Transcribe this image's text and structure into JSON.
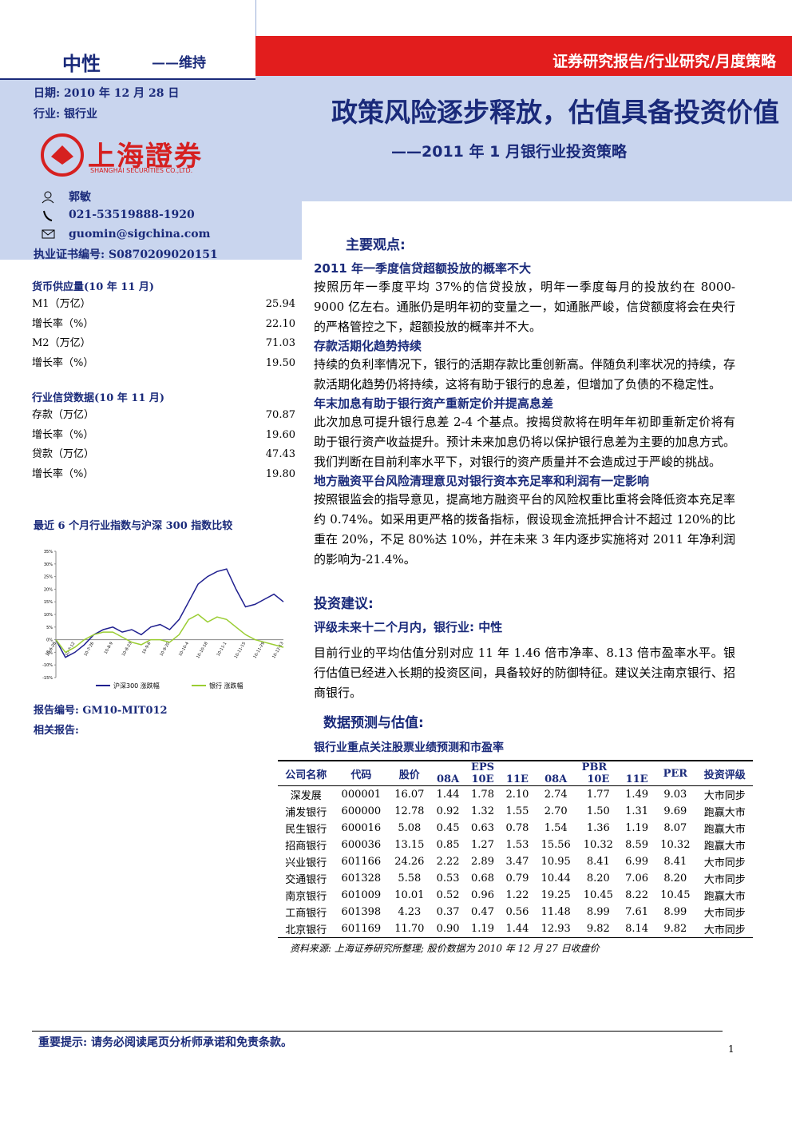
{
  "header": {
    "rating": "中性",
    "rating_action": "——维持",
    "report_type": "证券研究报告/行业研究/月度策略",
    "date": "日期: 2010 年 12 月 28 日",
    "industry": "行业: 银行业",
    "title": "政策风险逐步释放，估值具备投资价值",
    "subtitle": "——2011 年 1 月银行业投资策略",
    "logo_cn": "上海證券",
    "logo_en": "SHANGHAI SECURITIES CO.,LTD."
  },
  "analyst": {
    "name": "郭敏",
    "phone": "021-53519888-1920",
    "email": "guomin@sigchina.com",
    "license": "执业证书编号: S0870209020151"
  },
  "sidebar": {
    "tables": [
      {
        "title": "货币供应量(10 年 11 月)",
        "rows": [
          [
            "M1（万亿）",
            "25.94"
          ],
          [
            "增长率（%）",
            "22.10"
          ],
          [
            "M2（万亿）",
            "71.03"
          ],
          [
            "增长率（%）",
            "19.50"
          ]
        ]
      },
      {
        "title": "行业信贷数据(10 年 11 月)",
        "rows": [
          [
            "存款（万亿）",
            "70.87"
          ],
          [
            "增长率（%）",
            "19.60"
          ],
          [
            "贷款（万亿）",
            "47.43"
          ],
          [
            "增长率（%）",
            "19.80"
          ]
        ]
      }
    ],
    "chart_title": "最近 6 个月行业指数与沪深 300 指数比较",
    "report_no": "报告编号: GM10-MIT012",
    "related": "相关报告:"
  },
  "chart_data": {
    "type": "line",
    "categories": [
      "10-6-28",
      null,
      "10-7-12",
      null,
      "10-7-26",
      null,
      "10-8-9",
      null,
      "10-8-23",
      null,
      "10-9-6",
      null,
      "10-9-20",
      null,
      "10-10-4",
      null,
      "10-10-18",
      null,
      "10-11-1",
      null,
      "10-11-15",
      null,
      "10-11-29",
      null,
      "10-12-13"
    ],
    "series": [
      {
        "name": "沪深300 涨跌幅",
        "color": "#1f1f8f",
        "values": [
          0,
          -7,
          -5,
          -2,
          2,
          4,
          5,
          3,
          4,
          2,
          5,
          6,
          4,
          8,
          15,
          22,
          25,
          27,
          28,
          20,
          13,
          14,
          16,
          18,
          15
        ]
      },
      {
        "name": "银行 涨跌幅",
        "color": "#9acd32",
        "values": [
          0,
          -5,
          -3,
          0,
          2,
          3,
          3,
          1,
          -1,
          -2,
          0,
          0,
          -1,
          2,
          8,
          10,
          7,
          9,
          8,
          5,
          2,
          0,
          -1,
          -2,
          -3
        ]
      }
    ],
    "ylim": [
      -15,
      35
    ],
    "yticks": [
      {
        "value": -15,
        "label": "-15%"
      },
      {
        "value": -10,
        "label": "-10%"
      },
      {
        "value": -5,
        "label": "-5%"
      },
      {
        "value": 0,
        "label": "0%"
      },
      {
        "value": 5,
        "label": "5%"
      },
      {
        "value": 10,
        "label": "10%"
      },
      {
        "value": 15,
        "label": "15%"
      },
      {
        "value": 20,
        "label": "20%"
      },
      {
        "value": 25,
        "label": "25%"
      },
      {
        "value": 30,
        "label": "30%"
      },
      {
        "value": 35,
        "label": "35%"
      }
    ],
    "grid": false,
    "legend": "bottom"
  },
  "main": {
    "key_points_heading": "主要观点:",
    "sections": [
      {
        "heading": "2011 年一季度信贷超额投放的概率不大",
        "body": "按照历年一季度平均 37%的信贷投放，明年一季度每月的投放约在 8000-9000 亿左右。通胀仍是明年初的变量之一，如通胀严峻，信贷额度将会在央行的严格管控之下，超额投放的概率并不大。"
      },
      {
        "heading": "存款活期化趋势持续",
        "body": "持续的负利率情况下，银行的活期存款比重创新高。伴随负利率状况的持续，存款活期化趋势仍将持续，这将有助于银行的息差，但增加了负债的不稳定性。"
      },
      {
        "heading": "年末加息有助于银行资产重新定价并提高息差",
        "body": "此次加息可提升银行息差 2-4 个基点。按揭贷款将在明年年初即重新定价将有助于银行资产收益提升。预计未来加息仍将以保护银行息差为主要的加息方式。我们判断在目前利率水平下，对银行的资产质量并不会造成过于严峻的挑战。"
      },
      {
        "heading": "地方融资平台风险清理意见对银行资本充足率和利润有一定影响",
        "body": "按照银监会的指导意见，提高地方融资平台的风险权重比重将会降低资本充足率约 0.74%。如采用更严格的拨备指标，假设现金流抵押合计不超过 120%的比重在 20%，不足 80%达 10%，并在未来 3 年内逐步实施将对 2011 年净利润的影响为-21.4%。"
      }
    ],
    "investment_heading": "投资建议:",
    "rating_line": "评级未来十二个月内，银行业: 中性",
    "investment_body": "目前行业的平均估值分别对应 11 年 1.46 倍市净率、8.13 倍市盈率水平。银行估值已经进入长期的投资区间，具备较好的防御特征。建议关注南京银行、招商银行。",
    "forecast_heading": "数据预测与估值:",
    "table": {
      "title": "银行业重点关注股票业绩预测和市盈率",
      "header": [
        "公司名称",
        "代码",
        "股价",
        "EPS",
        "PBR",
        "PER",
        "投资评级"
      ],
      "subheader": [
        "08A",
        "10E",
        "11E",
        "08A",
        "10E",
        "11E"
      ],
      "rows": [
        [
          "深发展",
          "000001",
          "16.07",
          "1.44",
          "1.78",
          "2.10",
          "2.74",
          "1.77",
          "1.49",
          "9.03",
          "大市同步"
        ],
        [
          "浦发银行",
          "600000",
          "12.78",
          "0.92",
          "1.32",
          "1.55",
          "2.70",
          "1.50",
          "1.31",
          "9.69",
          "跑赢大市"
        ],
        [
          "民生银行",
          "600016",
          "5.08",
          "0.45",
          "0.63",
          "0.78",
          "1.54",
          "1.36",
          "1.19",
          "8.07",
          "跑赢大市"
        ],
        [
          "招商银行",
          "600036",
          "13.15",
          "0.85",
          "1.27",
          "1.53",
          "15.56",
          "10.32",
          "8.59",
          "10.32",
          "跑赢大市"
        ],
        [
          "兴业银行",
          "601166",
          "24.26",
          "2.22",
          "2.89",
          "3.47",
          "10.95",
          "8.41",
          "6.99",
          "8.41",
          "大市同步"
        ],
        [
          "交通银行",
          "601328",
          "5.58",
          "0.53",
          "0.68",
          "0.79",
          "10.44",
          "8.20",
          "7.06",
          "8.20",
          "大市同步"
        ],
        [
          "南京银行",
          "601009",
          "10.01",
          "0.52",
          "0.96",
          "1.22",
          "19.25",
          "10.45",
          "8.22",
          "10.45",
          "跑赢大市"
        ],
        [
          "工商银行",
          "601398",
          "4.23",
          "0.37",
          "0.47",
          "0.56",
          "11.48",
          "8.99",
          "7.61",
          "8.99",
          "大市同步"
        ],
        [
          "北京银行",
          "601169",
          "11.70",
          "0.90",
          "1.19",
          "1.44",
          "12.93",
          "9.82",
          "8.14",
          "9.82",
          "大市同步"
        ]
      ],
      "source": "资料来源: 上海证券研究所整理; 股价数据为 2010 年 12 月 27 日收盘价"
    }
  },
  "footer": {
    "notice": "重要提示: 请务必阅读尾页分析师承诺和免责条款。",
    "page": "1"
  }
}
